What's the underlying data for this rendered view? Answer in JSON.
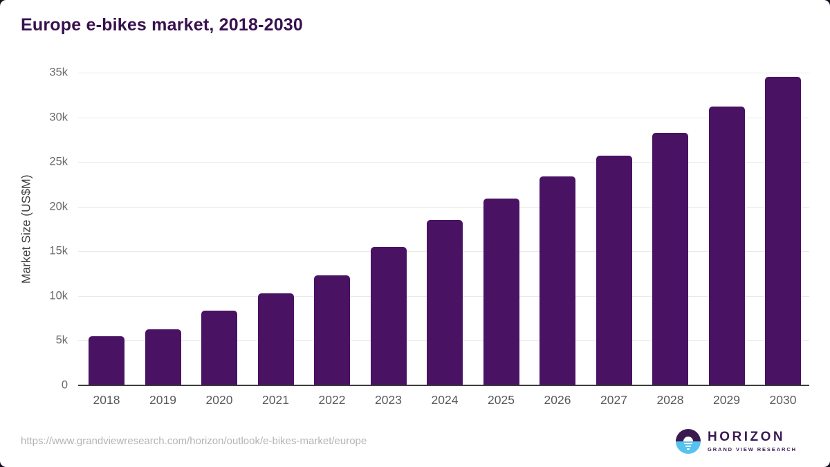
{
  "page": {
    "title": "Europe e-bikes market, 2018-2030",
    "source_url": "https://www.grandviewresearch.com/horizon/outlook/e-bikes-market/europe"
  },
  "branding": {
    "logo_name": "HORIZON",
    "logo_subtitle": "GRAND VIEW RESEARCH",
    "logo_icon": "sunset-horizon-icon",
    "logo_purple": "#3b1a52",
    "logo_blue": "#56c3ef"
  },
  "chart_data": {
    "type": "bar",
    "title": "Europe e-bikes market, 2018-2030",
    "categories": [
      "2018",
      "2019",
      "2020",
      "2021",
      "2022",
      "2023",
      "2024",
      "2025",
      "2026",
      "2027",
      "2028",
      "2029",
      "2030"
    ],
    "values": [
      5500,
      6300,
      8400,
      10300,
      12300,
      15500,
      18500,
      20900,
      23400,
      25700,
      28300,
      31200,
      34500
    ],
    "xlabel": "",
    "ylabel": "Market Size (US$M)",
    "ylim": [
      0,
      35000
    ],
    "ytick_step": 5000,
    "ytick_labels": [
      "0",
      "5k",
      "10k",
      "15k",
      "20k",
      "25k",
      "30k",
      "35k"
    ],
    "grid": true,
    "legend": false,
    "bar_color": "#4a1263",
    "gridline_color": "#e9e9e9",
    "axis_color": "#3c3c3c",
    "title_color": "#38104e"
  }
}
